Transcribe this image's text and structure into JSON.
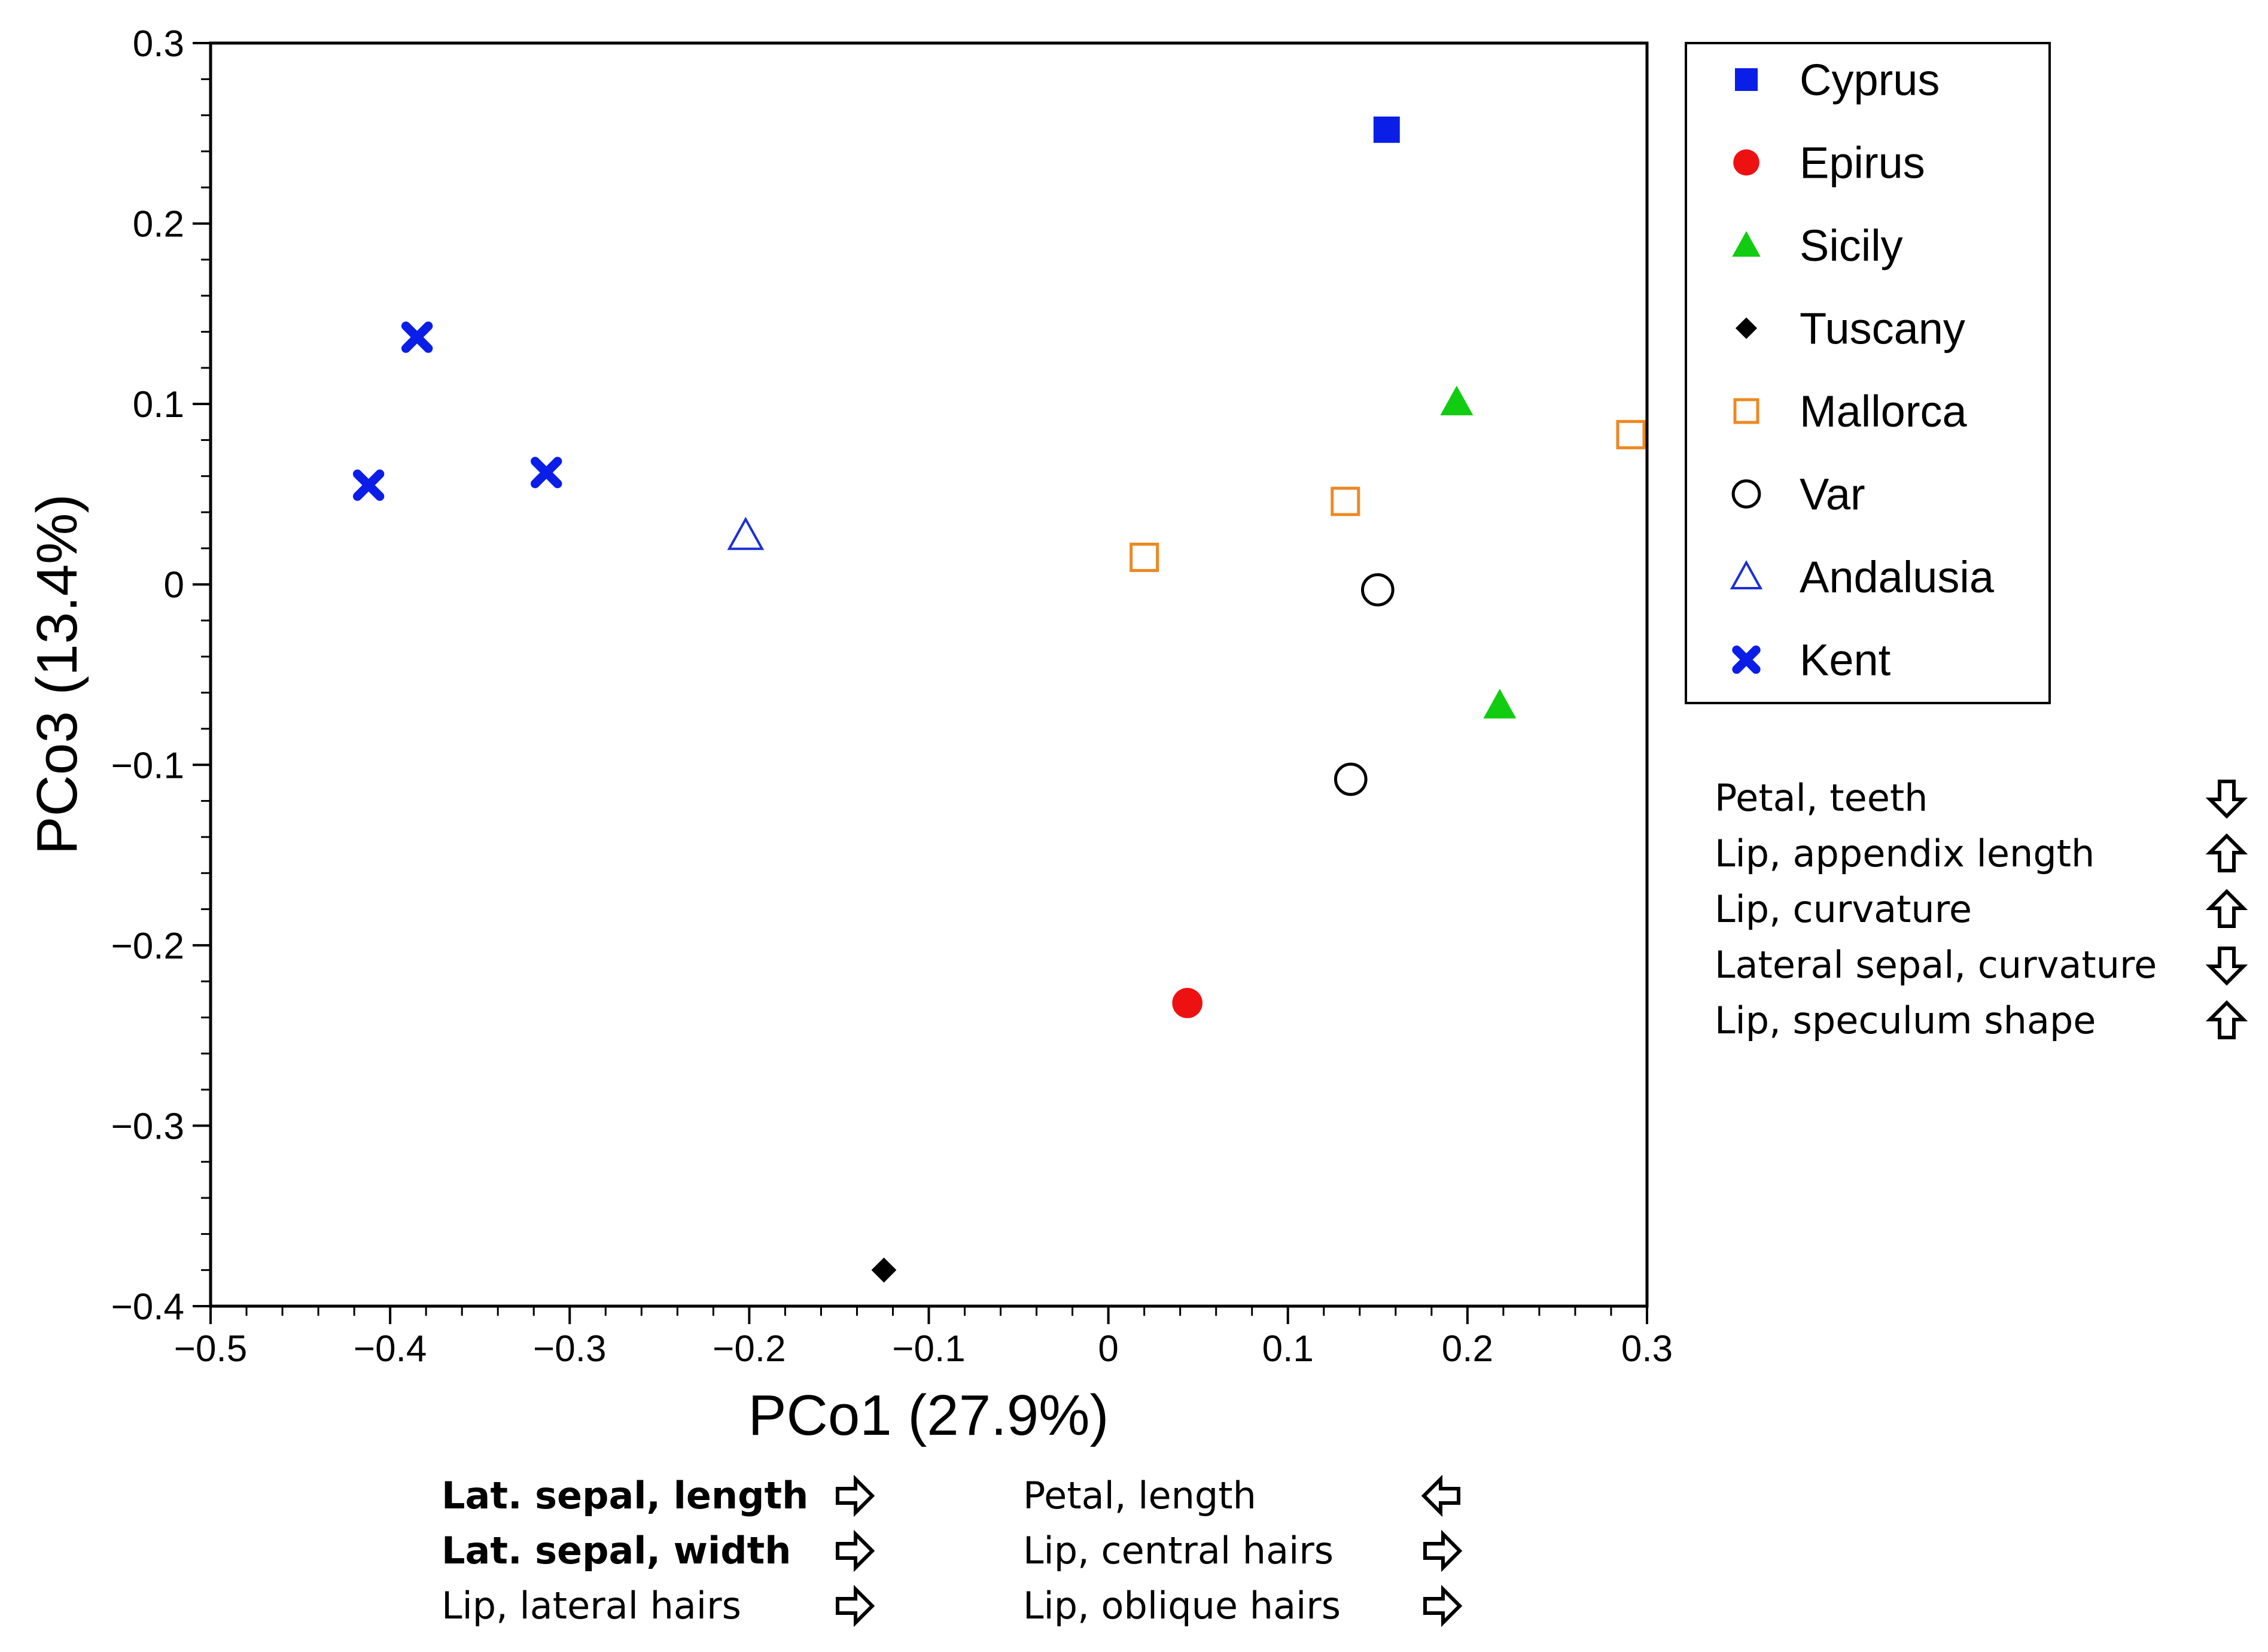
{
  "chart_data": {
    "type": "scatter",
    "xlabel": "PCo1 (27.9%)",
    "ylabel": "PCo3 (13.4%)",
    "xlim": [
      -0.5,
      0.3
    ],
    "ylim": [
      -0.4,
      0.3
    ],
    "x_ticks": [
      -0.5,
      -0.4,
      -0.3,
      -0.2,
      -0.1,
      0,
      0.1,
      0.2,
      0.3
    ],
    "x_tick_labels": [
      "−0.5",
      "−0.4",
      "−0.3",
      "−0.2",
      "−0.1",
      "0",
      "0.1",
      "0.2",
      "0.3"
    ],
    "y_ticks": [
      0.3,
      0.2,
      0.1,
      0,
      -0.1,
      -0.2,
      -0.3,
      -0.4
    ],
    "y_tick_labels": [
      "0.3",
      "0.2",
      "0.1",
      "0",
      "−0.1",
      "−0.2",
      "−0.3",
      "−0.4"
    ],
    "grid": false,
    "legend_position": "right",
    "series": [
      {
        "name": "Cyprus",
        "marker": "square-filled",
        "color": "#0a1ee8",
        "points": [
          [
            0.155,
            0.252
          ]
        ]
      },
      {
        "name": "Epirus",
        "marker": "circle-filled",
        "color": "#ee1111",
        "points": [
          [
            0.044,
            -0.232
          ]
        ]
      },
      {
        "name": "Sicily",
        "marker": "triangle-filled",
        "color": "#11cc11",
        "points": [
          [
            0.194,
            0.101
          ],
          [
            0.218,
            -0.067
          ]
        ]
      },
      {
        "name": "Tuscany",
        "marker": "diamond-filled",
        "color": "#000000",
        "points": [
          [
            -0.125,
            -0.38
          ]
        ]
      },
      {
        "name": "Mallorca",
        "marker": "square-open",
        "color": "#ee8822",
        "points": [
          [
            0.132,
            0.046
          ],
          [
            0.02,
            0.015
          ],
          [
            0.291,
            0.083
          ]
        ]
      },
      {
        "name": "Var",
        "marker": "circle-open",
        "color": "#000000",
        "points": [
          [
            0.15,
            -0.003
          ],
          [
            0.135,
            -0.108
          ]
        ]
      },
      {
        "name": "Andalusia",
        "marker": "triangle-open",
        "color": "#1a2fd6",
        "points": [
          [
            -0.202,
            0.027
          ]
        ]
      },
      {
        "name": "Kent",
        "marker": "cross",
        "color": "#0a1ee8",
        "points": [
          [
            -0.385,
            0.137
          ],
          [
            -0.412,
            0.055
          ],
          [
            -0.313,
            0.062
          ]
        ]
      }
    ],
    "loadings_y": [
      {
        "label": "Petal, teeth",
        "direction": "down"
      },
      {
        "label": "Lip, appendix length",
        "direction": "up"
      },
      {
        "label": "Lip, curvature",
        "direction": "up"
      },
      {
        "label": "Lateral sepal, curvature",
        "direction": "down"
      },
      {
        "label": "Lip, speculum shape",
        "direction": "up"
      }
    ],
    "loadings_x": [
      {
        "label": "Lat. sepal, length",
        "direction": "right",
        "bold": true
      },
      {
        "label": "Lat. sepal, width",
        "direction": "right",
        "bold": true
      },
      {
        "label": "Lip, lateral hairs",
        "direction": "right",
        "bold": false
      },
      {
        "label": "Petal, length",
        "direction": "left",
        "bold": false
      },
      {
        "label": "Lip, central hairs",
        "direction": "right",
        "bold": false
      },
      {
        "label": "Lip, oblique hairs",
        "direction": "right",
        "bold": false
      }
    ]
  }
}
